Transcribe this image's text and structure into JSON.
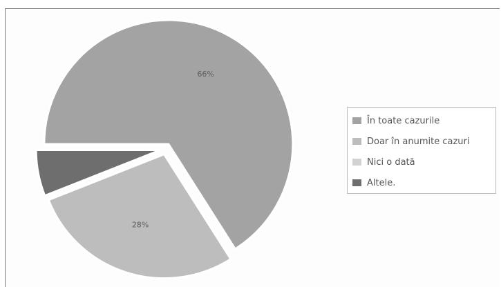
{
  "chart_data": {
    "type": "pie",
    "title": "",
    "slices": [
      {
        "name": "În toate cazurile",
        "value": 66,
        "label": "66%",
        "color": "#a3a3a3"
      },
      {
        "name": "Doar în anumite cazuri",
        "value": 28,
        "label": "28%",
        "color": "#bdbdbd"
      },
      {
        "name": "Nici o dată",
        "value": 0,
        "label": "",
        "color": "#d2d2d2"
      },
      {
        "name": "Altele.",
        "value": 6,
        "label": "",
        "color": "#6e6e6e"
      }
    ],
    "legend_position": "right"
  }
}
